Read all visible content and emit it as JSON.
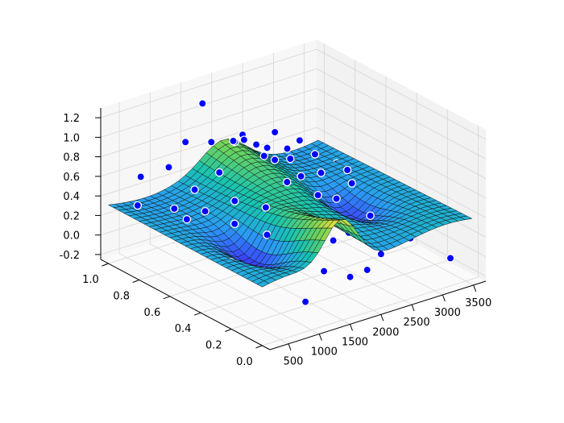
{
  "chart_data": {
    "type": "surface",
    "title": "",
    "xlabel": "",
    "ylabel": "",
    "zlabel": "",
    "xlim": [
      200,
      3700
    ],
    "ylim": [
      -0.05,
      1.05
    ],
    "zlim": [
      -0.25,
      1.3
    ],
    "grid": true,
    "x_ticks": [
      "500",
      "1000",
      "1500",
      "2000",
      "2500",
      "3000",
      "3500"
    ],
    "y_ticks": [
      "0.0",
      "0.2",
      "0.4",
      "0.6",
      "0.8",
      "1.0"
    ],
    "z_ticks": [
      "-0.2",
      "0.0",
      "0.2",
      "0.4",
      "0.6",
      "0.8",
      "1.0",
      "1.2"
    ],
    "surface": {
      "x_range": [
        200,
        3600
      ],
      "y_range": [
        0,
        1
      ],
      "resolution": [
        30,
        30
      ],
      "colormap": "viridis-like (blue to yellow)",
      "colormap_stops": [
        "#3b3bff",
        "#2a9df4",
        "#17c3b2",
        "#6fd35a",
        "#ffe13a"
      ]
    },
    "scatter": {
      "color": "#0000ff",
      "edgecolor": "#ffffff",
      "points": [
        {
          "x": 300,
          "y": 0.85,
          "z": 0.45
        },
        {
          "x": 350,
          "y": 0.55,
          "z": 0.55
        },
        {
          "x": 450,
          "y": 0.3,
          "z": 0.3
        },
        {
          "x": 520,
          "y": 0.7,
          "z": 0.5
        },
        {
          "x": 600,
          "y": 0.95,
          "z": 0.6
        },
        {
          "x": 700,
          "y": 0.15,
          "z": 0.2
        },
        {
          "x": 750,
          "y": 0.4,
          "z": 0.55
        },
        {
          "x": 820,
          "y": 0.62,
          "z": 0.48
        },
        {
          "x": 880,
          "y": 0.88,
          "z": 0.7
        },
        {
          "x": 950,
          "y": 0.25,
          "z": 0.1
        },
        {
          "x": 1000,
          "y": 0.5,
          "z": 0.65
        },
        {
          "x": 1050,
          "y": 0.78,
          "z": 0.52
        },
        {
          "x": 1100,
          "y": 0.08,
          "z": -0.05
        },
        {
          "x": 1150,
          "y": 0.35,
          "z": 0.4
        },
        {
          "x": 1200,
          "y": 0.68,
          "z": 0.75
        },
        {
          "x": 1250,
          "y": 0.92,
          "z": 0.85
        },
        {
          "x": 1300,
          "y": 0.2,
          "z": 0.35
        },
        {
          "x": 1380,
          "y": 0.45,
          "z": 0.55
        },
        {
          "x": 1420,
          "y": 0.82,
          "z": 0.9
        },
        {
          "x": 1500,
          "y": 0.12,
          "z": 0.15
        },
        {
          "x": 1550,
          "y": 0.58,
          "z": 1.05
        },
        {
          "x": 1600,
          "y": 0.95,
          "z": 1.15
        },
        {
          "x": 1650,
          "y": 0.3,
          "z": 0.5
        },
        {
          "x": 1700,
          "y": 0.72,
          "z": 0.95
        },
        {
          "x": 1750,
          "y": 0.05,
          "z": 0.1
        },
        {
          "x": 1800,
          "y": 0.48,
          "z": 0.7
        },
        {
          "x": 1850,
          "y": 0.85,
          "z": 0.8
        },
        {
          "x": 1900,
          "y": 0.22,
          "z": 0.3
        },
        {
          "x": 1950,
          "y": 0.62,
          "z": 0.78
        },
        {
          "x": 2000,
          "y": 0.9,
          "z": 0.72
        },
        {
          "x": 2050,
          "y": 0.38,
          "z": 0.6
        },
        {
          "x": 2100,
          "y": 0.75,
          "z": 0.68
        },
        {
          "x": 2150,
          "y": 0.1,
          "z": 0.05
        },
        {
          "x": 2200,
          "y": 0.55,
          "z": 0.62
        },
        {
          "x": 2250,
          "y": 0.95,
          "z": 0.7
        },
        {
          "x": 2300,
          "y": 0.28,
          "z": 0.25
        },
        {
          "x": 2350,
          "y": 0.68,
          "z": 0.66
        },
        {
          "x": 2400,
          "y": 0.85,
          "z": 0.62
        },
        {
          "x": 2450,
          "y": 0.42,
          "z": 0.45
        },
        {
          "x": 2500,
          "y": 0.15,
          "z": 0.1
        },
        {
          "x": 2550,
          "y": 0.78,
          "z": 0.64
        },
        {
          "x": 2600,
          "y": 0.58,
          "z": 0.55
        },
        {
          "x": 2700,
          "y": 0.92,
          "z": 0.66
        },
        {
          "x": 2750,
          "y": 0.32,
          "z": 0.3
        },
        {
          "x": 2800,
          "y": 0.7,
          "z": 0.6
        },
        {
          "x": 2900,
          "y": 0.5,
          "z": 0.45
        },
        {
          "x": 3000,
          "y": 0.88,
          "z": 0.55
        },
        {
          "x": 3100,
          "y": 0.2,
          "z": 0.1
        },
        {
          "x": 3200,
          "y": 0.65,
          "z": 0.4
        },
        {
          "x": 3300,
          "y": 0.4,
          "z": 0.2
        },
        {
          "x": 3400,
          "y": 0.8,
          "z": 0.3
        },
        {
          "x": 3500,
          "y": 0.1,
          "z": -0.1
        }
      ]
    }
  }
}
